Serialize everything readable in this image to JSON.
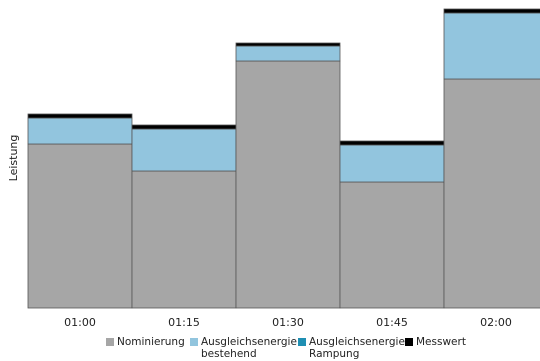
{
  "chart_data": {
    "type": "stacked_bar",
    "y_label": "Leistung",
    "categories": [
      "01:00",
      "01:15",
      "01:30",
      "01:45",
      "02:00"
    ],
    "series": [
      {
        "name": "Nominierung",
        "color": "#a6a6a6",
        "values": [
          164,
          137,
          247,
          126,
          229
        ]
      },
      {
        "name": "Ausgleichsenergie bestehend",
        "color": "#92c5de",
        "values": [
          26,
          42,
          15,
          37,
          66
        ]
      },
      {
        "name": "Ausgleichsenergie Rampung",
        "color": "#1f8fb3",
        "values": [
          0,
          0,
          0,
          0,
          0
        ]
      },
      {
        "name": "Messwert",
        "color": "#000000",
        "values": [
          4,
          4,
          3,
          4,
          4
        ]
      }
    ],
    "ylim": [
      0,
      300
    ],
    "legend": "bottom"
  }
}
